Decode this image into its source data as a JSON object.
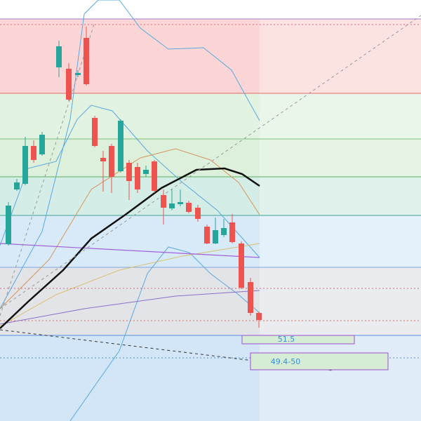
{
  "labels": [
    "51.5",
    "49.4-50"
  ]
}
